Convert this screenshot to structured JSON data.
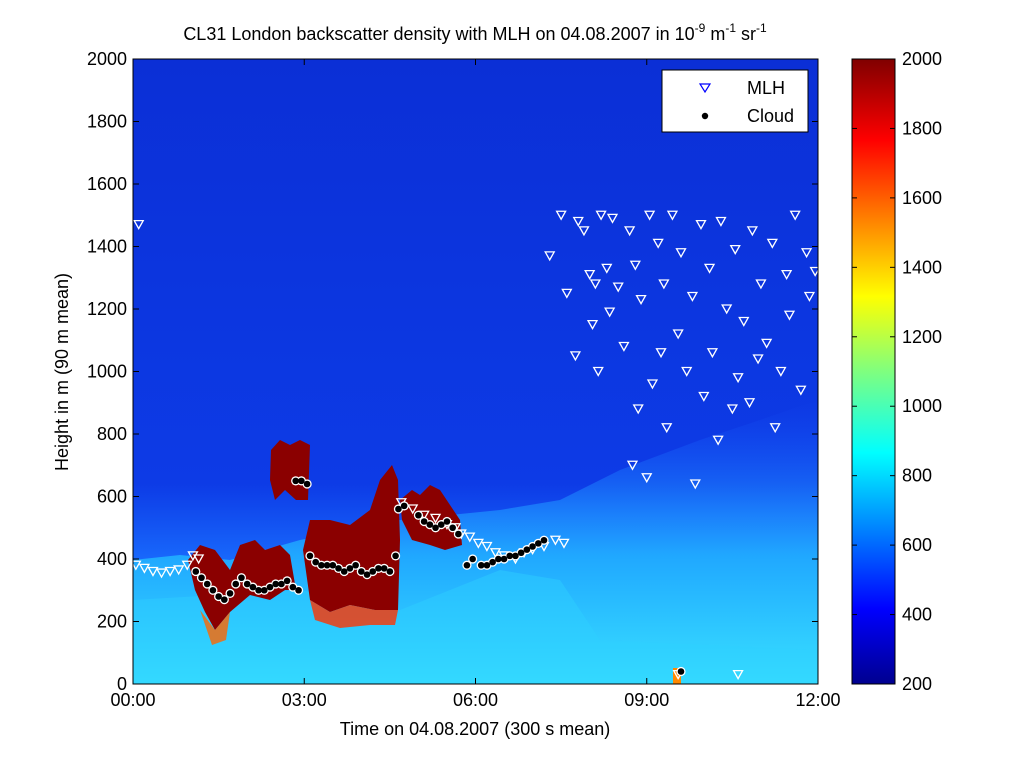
{
  "chart_data": {
    "type": "heatmap",
    "title": {
      "main": "CL31 London backscatter density with MLH on 04.08.2007 in 10",
      "exp1": "-9",
      "mid1": " m",
      "exp2": "-1",
      "mid2": " sr",
      "exp3": "-1"
    },
    "xlabel": "Time on 04.08.2007 (300 s mean)",
    "ylabel": "Height in m (90 m mean)",
    "x_range_hours": [
      0,
      12
    ],
    "x_ticks": [
      {
        "hour": 0,
        "label": "00:00"
      },
      {
        "hour": 3,
        "label": "03:00"
      },
      {
        "hour": 6,
        "label": "06:00"
      },
      {
        "hour": 9,
        "label": "09:00"
      },
      {
        "hour": 12,
        "label": "12:00"
      }
    ],
    "ylim": [
      0,
      2000
    ],
    "y_ticks": [
      0,
      200,
      400,
      600,
      800,
      1000,
      1200,
      1400,
      1600,
      1800,
      2000
    ],
    "colorbar": {
      "range": [
        200,
        2000
      ],
      "ticks": [
        200,
        400,
        600,
        800,
        1000,
        1200,
        1400,
        1600,
        1800,
        2000
      ],
      "colormap": "jet"
    },
    "legend": {
      "position": "top-right",
      "entries": [
        {
          "label": "MLH",
          "marker": "triangle-down-open",
          "color": "#0000ff"
        },
        {
          "label": "Cloud",
          "marker": "dot",
          "color": "#000000"
        }
      ]
    },
    "series": [
      {
        "name": "MLH",
        "marker_color": "#ffffff",
        "points": [
          [
            0.1,
            1470
          ],
          [
            0.05,
            380
          ],
          [
            0.2,
            370
          ],
          [
            0.35,
            360
          ],
          [
            0.5,
            355
          ],
          [
            0.65,
            360
          ],
          [
            0.8,
            365
          ],
          [
            0.95,
            380
          ],
          [
            1.05,
            410
          ],
          [
            1.15,
            400
          ],
          [
            4.7,
            580
          ],
          [
            4.9,
            560
          ],
          [
            5.1,
            540
          ],
          [
            5.3,
            530
          ],
          [
            5.5,
            510
          ],
          [
            5.65,
            500
          ],
          [
            5.75,
            480
          ],
          [
            5.9,
            470
          ],
          [
            6.05,
            450
          ],
          [
            6.2,
            440
          ],
          [
            6.35,
            420
          ],
          [
            6.5,
            410
          ],
          [
            6.7,
            400
          ],
          [
            6.85,
            420
          ],
          [
            7.0,
            430
          ],
          [
            7.2,
            440
          ],
          [
            7.4,
            460
          ],
          [
            7.55,
            450
          ],
          [
            7.3,
            1370
          ],
          [
            7.5,
            1500
          ],
          [
            7.6,
            1250
          ],
          [
            7.75,
            1050
          ],
          [
            7.8,
            1480
          ],
          [
            7.9,
            1450
          ],
          [
            8.0,
            1310
          ],
          [
            8.05,
            1150
          ],
          [
            8.1,
            1280
          ],
          [
            8.15,
            1000
          ],
          [
            8.2,
            1500
          ],
          [
            8.3,
            1330
          ],
          [
            8.35,
            1190
          ],
          [
            8.4,
            1490
          ],
          [
            8.5,
            1270
          ],
          [
            8.6,
            1080
          ],
          [
            8.7,
            1450
          ],
          [
            8.75,
            700
          ],
          [
            8.8,
            1340
          ],
          [
            8.85,
            880
          ],
          [
            8.9,
            1230
          ],
          [
            9.0,
            660
          ],
          [
            9.05,
            1500
          ],
          [
            9.1,
            960
          ],
          [
            9.2,
            1410
          ],
          [
            9.25,
            1060
          ],
          [
            9.3,
            1280
          ],
          [
            9.35,
            820
          ],
          [
            9.45,
            1500
          ],
          [
            9.55,
            1120
          ],
          [
            9.6,
            1380
          ],
          [
            9.7,
            1000
          ],
          [
            9.8,
            1240
          ],
          [
            9.85,
            640
          ],
          [
            9.95,
            1470
          ],
          [
            10.0,
            920
          ],
          [
            10.1,
            1330
          ],
          [
            10.15,
            1060
          ],
          [
            10.25,
            780
          ],
          [
            10.3,
            1480
          ],
          [
            10.4,
            1200
          ],
          [
            10.5,
            880
          ],
          [
            10.55,
            1390
          ],
          [
            10.6,
            980
          ],
          [
            10.7,
            1160
          ],
          [
            10.8,
            900
          ],
          [
            10.85,
            1450
          ],
          [
            10.95,
            1040
          ],
          [
            11.0,
            1280
          ],
          [
            11.1,
            1090
          ],
          [
            11.2,
            1410
          ],
          [
            11.25,
            820
          ],
          [
            11.35,
            1000
          ],
          [
            11.45,
            1310
          ],
          [
            11.5,
            1180
          ],
          [
            11.6,
            1500
          ],
          [
            11.7,
            940
          ],
          [
            11.8,
            1380
          ],
          [
            11.85,
            1240
          ],
          [
            11.95,
            1320
          ],
          [
            9.55,
            30
          ],
          [
            10.6,
            30
          ]
        ]
      },
      {
        "name": "Cloud",
        "marker_color": "#000000",
        "points": [
          [
            1.1,
            360
          ],
          [
            1.2,
            340
          ],
          [
            1.3,
            320
          ],
          [
            1.4,
            300
          ],
          [
            1.5,
            280
          ],
          [
            1.6,
            270
          ],
          [
            1.7,
            290
          ],
          [
            1.8,
            320
          ],
          [
            1.9,
            340
          ],
          [
            2.0,
            320
          ],
          [
            2.1,
            310
          ],
          [
            2.2,
            300
          ],
          [
            2.3,
            300
          ],
          [
            2.4,
            310
          ],
          [
            2.5,
            320
          ],
          [
            2.6,
            320
          ],
          [
            2.7,
            330
          ],
          [
            2.8,
            310
          ],
          [
            2.9,
            300
          ],
          [
            2.85,
            650
          ],
          [
            2.95,
            650
          ],
          [
            3.05,
            640
          ],
          [
            3.1,
            410
          ],
          [
            3.2,
            390
          ],
          [
            3.3,
            380
          ],
          [
            3.4,
            380
          ],
          [
            3.5,
            380
          ],
          [
            3.6,
            370
          ],
          [
            3.7,
            360
          ],
          [
            3.8,
            370
          ],
          [
            3.9,
            380
          ],
          [
            4.0,
            360
          ],
          [
            4.1,
            350
          ],
          [
            4.2,
            360
          ],
          [
            4.3,
            370
          ],
          [
            4.4,
            370
          ],
          [
            4.5,
            360
          ],
          [
            4.6,
            410
          ],
          [
            4.65,
            560
          ],
          [
            4.75,
            570
          ],
          [
            5.0,
            540
          ],
          [
            5.1,
            520
          ],
          [
            5.2,
            510
          ],
          [
            5.3,
            500
          ],
          [
            5.4,
            510
          ],
          [
            5.5,
            520
          ],
          [
            5.6,
            500
          ],
          [
            5.7,
            480
          ],
          [
            5.85,
            380
          ],
          [
            5.95,
            400
          ],
          [
            6.1,
            380
          ],
          [
            6.2,
            380
          ],
          [
            6.3,
            390
          ],
          [
            6.4,
            400
          ],
          [
            6.5,
            400
          ],
          [
            6.6,
            410
          ],
          [
            6.7,
            410
          ],
          [
            6.8,
            420
          ],
          [
            6.9,
            430
          ],
          [
            7.0,
            440
          ],
          [
            7.1,
            450
          ],
          [
            7.2,
            460
          ],
          [
            9.6,
            40
          ]
        ]
      }
    ]
  }
}
